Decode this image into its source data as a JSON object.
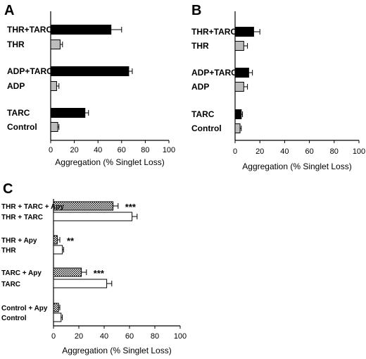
{
  "chart_data": [
    {
      "type": "bar",
      "panel": "A",
      "orientation": "horizontal",
      "xlabel": "Aggregation (% Singlet Loss)",
      "xlim": [
        0,
        100
      ],
      "xticks": [
        "0",
        "20",
        "40",
        "60",
        "80",
        "100"
      ],
      "bars": [
        {
          "label": "THR+TARC",
          "value": 51,
          "error": 9,
          "fill": "#000000"
        },
        {
          "label": "THR",
          "value": 8,
          "error": 2,
          "fill": "#bdbdbd"
        },
        {
          "label": "ADP+TARC",
          "value": 66,
          "error": 3,
          "fill": "#000000"
        },
        {
          "label": "ADP",
          "value": 5,
          "error": 2,
          "fill": "#bdbdbd"
        },
        {
          "label": "TARC",
          "value": 29,
          "error": 3,
          "fill": "#000000"
        },
        {
          "label": "Control",
          "value": 6,
          "error": 1,
          "fill": "#bdbdbd"
        }
      ]
    },
    {
      "type": "bar",
      "panel": "B",
      "orientation": "horizontal",
      "xlabel": "Aggregation (% Singlet Loss)",
      "xlim": [
        0,
        100
      ],
      "xticks": [
        "0",
        "20",
        "40",
        "60",
        "80",
        "100"
      ],
      "bars": [
        {
          "label": "THR+TARC",
          "value": 15,
          "error": 5,
          "fill": "#000000"
        },
        {
          "label": "THR",
          "value": 7,
          "error": 3,
          "fill": "#bdbdbd"
        },
        {
          "label": "ADP+TARC",
          "value": 11,
          "error": 3,
          "fill": "#000000"
        },
        {
          "label": "ADP",
          "value": 7,
          "error": 3,
          "fill": "#bdbdbd"
        },
        {
          "label": "TARC",
          "value": 5,
          "error": 1,
          "fill": "#000000"
        },
        {
          "label": "Control",
          "value": 4,
          "error": 1,
          "fill": "#bdbdbd"
        }
      ]
    },
    {
      "type": "bar",
      "panel": "C",
      "orientation": "horizontal",
      "xlabel": "Aggregation (% Singlet Loss)",
      "xlim": [
        0,
        100
      ],
      "xticks": [
        "0",
        "20",
        "40",
        "60",
        "80",
        "100"
      ],
      "bars": [
        {
          "label": "THR + TARC + Apy",
          "value": 47,
          "error": 4,
          "fill": "hatch",
          "annotation": "***"
        },
        {
          "label": "THR + TARC",
          "value": 62,
          "error": 4,
          "fill": "#ffffff"
        },
        {
          "label": "THR + Apy",
          "value": 3,
          "error": 2,
          "fill": "hatch",
          "annotation": "**"
        },
        {
          "label": "THR",
          "value": 7,
          "error": 1,
          "fill": "#ffffff"
        },
        {
          "label": "TARC + Apy",
          "value": 22,
          "error": 4,
          "fill": "hatch",
          "annotation": "***"
        },
        {
          "label": "TARC",
          "value": 42,
          "error": 4,
          "fill": "#ffffff"
        },
        {
          "label": "Control + Apy",
          "value": 4,
          "error": 1,
          "fill": "hatch"
        },
        {
          "label": "Control",
          "value": 6,
          "error": 1,
          "fill": "#ffffff"
        }
      ]
    }
  ]
}
